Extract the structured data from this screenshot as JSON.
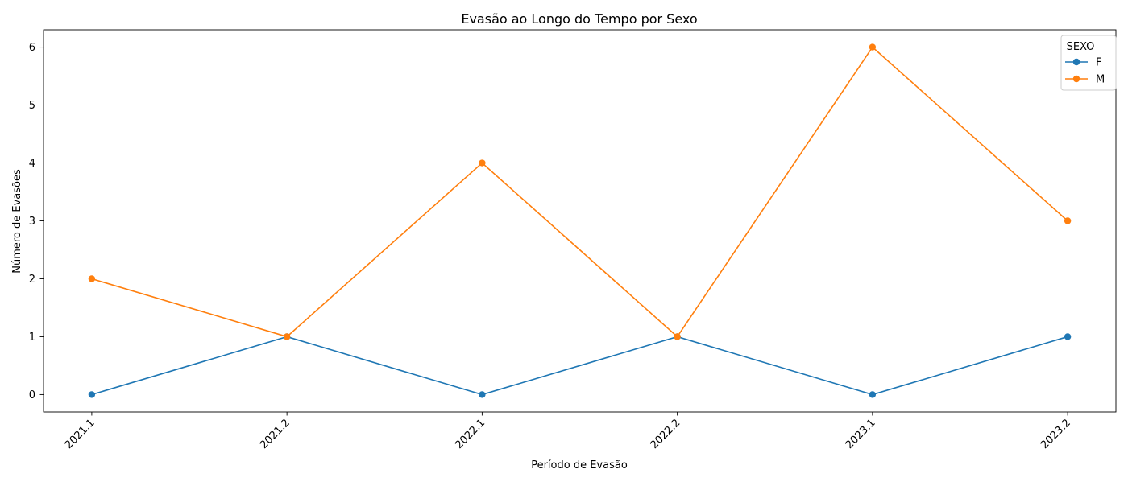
{
  "chart_data": {
    "type": "line",
    "title": "Evasão ao Longo do Tempo por Sexo",
    "xlabel": "Período de Evasão",
    "ylabel": "Número de Evasões",
    "categories": [
      "2021.1",
      "2021.2",
      "2022.1",
      "2022.2",
      "2023.1",
      "2023.2"
    ],
    "ylim": [
      -0.3,
      6.3
    ],
    "yticks": [
      0,
      1,
      2,
      3,
      4,
      5,
      6
    ],
    "grid": false,
    "legend": {
      "title": "SEXO",
      "placement": "top-right"
    },
    "series": [
      {
        "name": "F",
        "color": "#1f77b4",
        "values": [
          0,
          1,
          0,
          1,
          0,
          1
        ]
      },
      {
        "name": "M",
        "color": "#ff7f0e",
        "values": [
          2,
          1,
          4,
          1,
          6,
          3
        ]
      }
    ]
  }
}
